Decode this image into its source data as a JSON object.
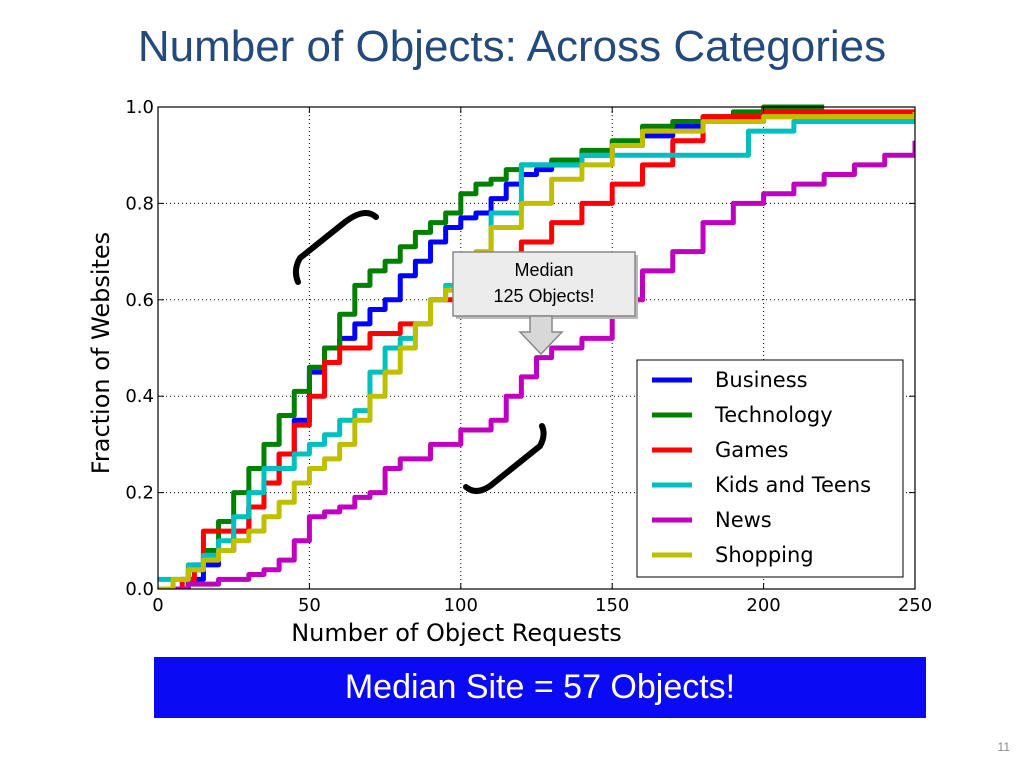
{
  "slide": {
    "title": "Number of Objects: Across Categories",
    "banner": "Median Site = 57 Objects!",
    "page_number": "11"
  },
  "callout": {
    "line1": "Median",
    "line2": "125 Objects!"
  },
  "chart_data": {
    "type": "line",
    "title": "",
    "xlabel": "Number of Object Requests",
    "ylabel": "Fraction of Websites",
    "xlim": [
      0,
      250
    ],
    "ylim": [
      0,
      1.0
    ],
    "xticks": [
      0,
      50,
      100,
      150,
      200,
      250
    ],
    "yticks": [
      0.0,
      0.2,
      0.4,
      0.6,
      0.8,
      1.0
    ],
    "grid": true,
    "legend_position": "lower-right",
    "series": [
      {
        "name": "Business",
        "color": "#0000ff",
        "x": [
          0,
          10,
          15,
          20,
          25,
          30,
          35,
          40,
          45,
          50,
          55,
          60,
          65,
          70,
          75,
          80,
          85,
          90,
          95,
          100,
          105,
          110,
          115,
          120,
          125,
          130,
          140,
          150,
          160,
          170,
          180,
          190,
          200,
          210,
          220
        ],
        "y": [
          0,
          0.02,
          0.05,
          0.08,
          0.12,
          0.17,
          0.22,
          0.28,
          0.35,
          0.45,
          0.5,
          0.52,
          0.55,
          0.58,
          0.6,
          0.65,
          0.68,
          0.72,
          0.75,
          0.77,
          0.78,
          0.81,
          0.84,
          0.86,
          0.87,
          0.88,
          0.9,
          0.92,
          0.94,
          0.96,
          0.97,
          0.97,
          0.98,
          0.98,
          0.99
        ]
      },
      {
        "name": "Technology",
        "color": "#008000",
        "x": [
          0,
          10,
          15,
          20,
          25,
          30,
          35,
          40,
          45,
          50,
          55,
          60,
          65,
          70,
          75,
          80,
          85,
          90,
          95,
          100,
          105,
          110,
          115,
          120,
          130,
          140,
          150,
          160,
          170,
          180,
          190,
          200,
          220
        ],
        "y": [
          0,
          0.04,
          0.08,
          0.14,
          0.2,
          0.25,
          0.3,
          0.36,
          0.41,
          0.46,
          0.5,
          0.57,
          0.63,
          0.66,
          0.68,
          0.71,
          0.74,
          0.76,
          0.78,
          0.82,
          0.84,
          0.85,
          0.87,
          0.88,
          0.89,
          0.91,
          0.93,
          0.96,
          0.97,
          0.98,
          0.99,
          1.0,
          1.0
        ]
      },
      {
        "name": "Games",
        "color": "#ff0000",
        "x": [
          0,
          8,
          12,
          15,
          25,
          30,
          35,
          40,
          45,
          50,
          55,
          60,
          65,
          70,
          75,
          80,
          90,
          100,
          110,
          120,
          130,
          140,
          150,
          160,
          170,
          180,
          190,
          200,
          250
        ],
        "y": [
          0,
          0.02,
          0.05,
          0.12,
          0.12,
          0.17,
          0.22,
          0.28,
          0.34,
          0.4,
          0.47,
          0.5,
          0.5,
          0.53,
          0.53,
          0.55,
          0.6,
          0.65,
          0.68,
          0.72,
          0.76,
          0.8,
          0.84,
          0.88,
          0.93,
          0.98,
          0.98,
          0.99,
          0.99
        ]
      },
      {
        "name": "Kids and Teens",
        "color": "#00bfbf",
        "x": [
          0,
          5,
          10,
          15,
          20,
          25,
          30,
          35,
          40,
          45,
          50,
          55,
          60,
          65,
          70,
          75,
          80,
          85,
          90,
          95,
          100,
          110,
          120,
          130,
          140,
          150,
          165,
          180,
          195,
          210,
          225,
          250
        ],
        "y": [
          0.02,
          0.02,
          0.05,
          0.07,
          0.1,
          0.15,
          0.2,
          0.25,
          0.25,
          0.28,
          0.3,
          0.32,
          0.35,
          0.37,
          0.45,
          0.5,
          0.52,
          0.55,
          0.6,
          0.63,
          0.68,
          0.78,
          0.88,
          0.88,
          0.9,
          0.9,
          0.9,
          0.9,
          0.95,
          0.97,
          0.97,
          0.97
        ]
      },
      {
        "name": "News",
        "color": "#bf00bf",
        "x": [
          0,
          10,
          20,
          30,
          35,
          40,
          45,
          50,
          55,
          60,
          65,
          70,
          75,
          80,
          90,
          100,
          110,
          115,
          120,
          125,
          130,
          140,
          150,
          160,
          170,
          180,
          190,
          200,
          210,
          220,
          230,
          240,
          250
        ],
        "y": [
          0,
          0.01,
          0.02,
          0.03,
          0.04,
          0.06,
          0.1,
          0.15,
          0.16,
          0.17,
          0.19,
          0.2,
          0.25,
          0.27,
          0.3,
          0.33,
          0.35,
          0.4,
          0.44,
          0.48,
          0.5,
          0.52,
          0.6,
          0.66,
          0.7,
          0.76,
          0.8,
          0.82,
          0.84,
          0.86,
          0.88,
          0.9,
          0.93
        ]
      },
      {
        "name": "Shopping",
        "color": "#bfbf00",
        "x": [
          0,
          5,
          10,
          15,
          20,
          25,
          30,
          35,
          40,
          45,
          50,
          55,
          60,
          65,
          70,
          75,
          80,
          85,
          90,
          95,
          100,
          105,
          110,
          120,
          130,
          140,
          150,
          160,
          180,
          200,
          250
        ],
        "y": [
          0,
          0.02,
          0.04,
          0.06,
          0.08,
          0.1,
          0.12,
          0.15,
          0.18,
          0.22,
          0.25,
          0.27,
          0.3,
          0.35,
          0.4,
          0.45,
          0.5,
          0.55,
          0.6,
          0.62,
          0.65,
          0.7,
          0.75,
          0.8,
          0.85,
          0.88,
          0.92,
          0.95,
          0.97,
          0.98,
          0.99
        ]
      }
    ]
  }
}
